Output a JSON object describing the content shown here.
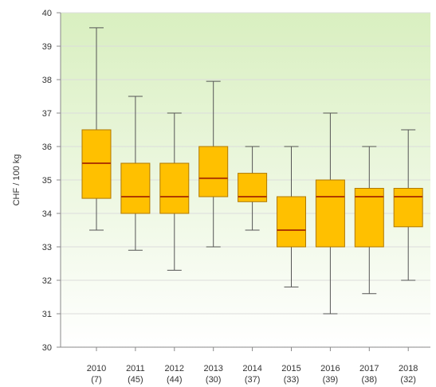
{
  "chart_data": {
    "type": "boxplot",
    "title": "",
    "xlabel": "",
    "ylabel": "CHF / 100 kg",
    "ylim": [
      30,
      40
    ],
    "yticks": [
      30,
      31,
      32,
      33,
      34,
      35,
      36,
      37,
      38,
      39,
      40
    ],
    "grid": true,
    "legend": "none",
    "categories": [
      "2010",
      "2011",
      "2012",
      "2013",
      "2014",
      "2015",
      "2016",
      "2017",
      "2018"
    ],
    "counts": [
      "(7)",
      "(45)",
      "(44)",
      "(30)",
      "(37)",
      "(33)",
      "(39)",
      "(38)",
      "(32)"
    ],
    "boxes": [
      {
        "min": 33.5,
        "q1": 34.45,
        "median": 35.5,
        "q3": 36.5,
        "max": 39.55
      },
      {
        "min": 32.9,
        "q1": 34.0,
        "median": 34.5,
        "q3": 35.5,
        "max": 37.5
      },
      {
        "min": 32.3,
        "q1": 34.0,
        "median": 34.5,
        "q3": 35.5,
        "max": 37.0
      },
      {
        "min": 33.0,
        "q1": 34.5,
        "median": 35.05,
        "q3": 36.0,
        "max": 37.95
      },
      {
        "min": 33.5,
        "q1": 34.35,
        "median": 34.5,
        "q3": 35.2,
        "max": 36.0
      },
      {
        "min": 31.8,
        "q1": 33.0,
        "median": 33.5,
        "q3": 34.5,
        "max": 36.0
      },
      {
        "min": 31.0,
        "q1": 33.0,
        "median": 34.5,
        "q3": 35.0,
        "max": 37.0
      },
      {
        "min": 31.6,
        "q1": 33.0,
        "median": 34.5,
        "q3": 34.75,
        "max": 36.0
      },
      {
        "min": 32.0,
        "q1": 33.6,
        "median": 34.5,
        "q3": 34.75,
        "max": 36.5
      }
    ],
    "colors": {
      "box_fill": "#ffc000",
      "box_stroke": "#b07800",
      "median": "#b03a00",
      "whisker": "#555555",
      "grid": "#dcdcdc",
      "bg_top": "#d9efc0",
      "bg_bottom": "#ffffff",
      "axis": "#888888"
    }
  }
}
